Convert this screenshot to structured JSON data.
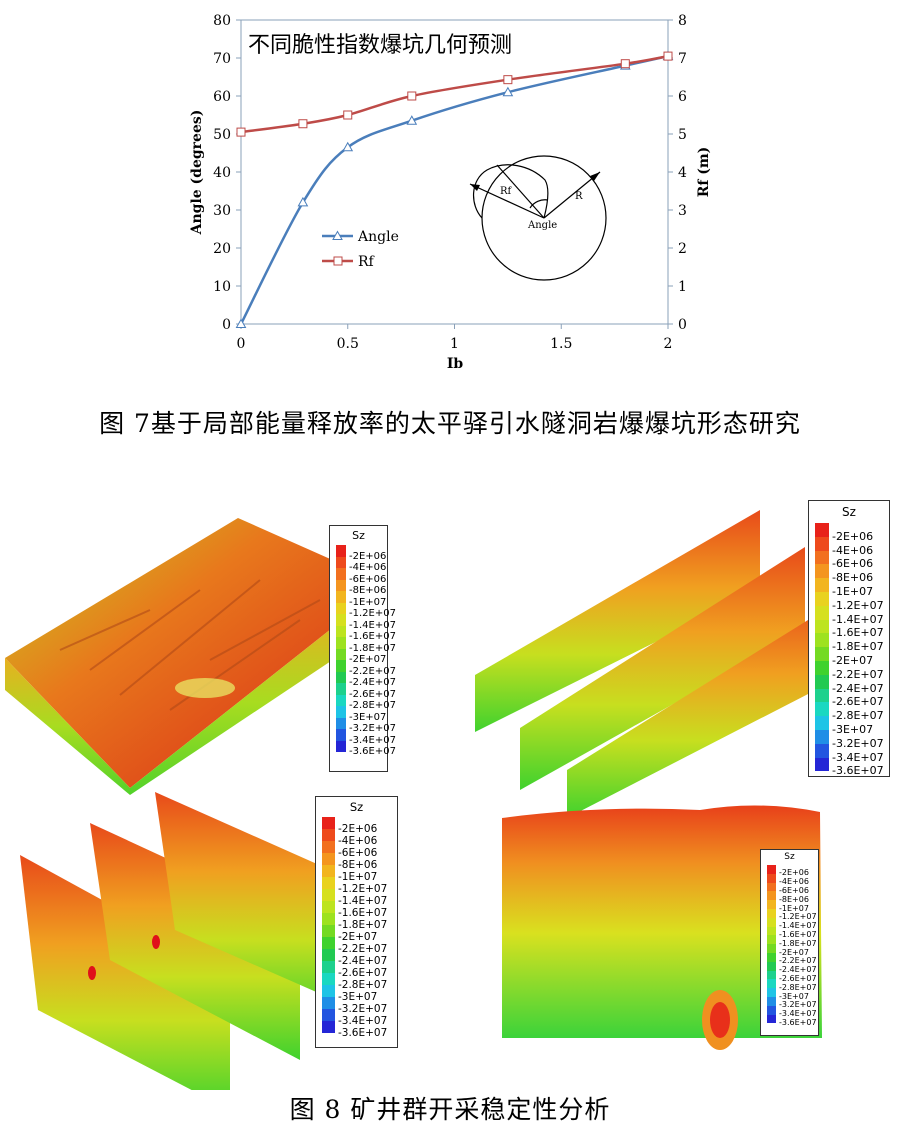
{
  "figure7": {
    "caption": "图 7基于局部能量释放率的太平驿引水隧洞岩爆爆坑形态研究",
    "chart_data": {
      "type": "line",
      "title": "不同脆性指数爆坑几何预测",
      "xlabel": "Ib",
      "ylabel_left": "Angle (degrees)",
      "ylabel_right": "Rf (m)",
      "xlim": [
        0,
        2
      ],
      "ylim_left": [
        0,
        80
      ],
      "ylim_right": [
        0,
        8
      ],
      "x_ticks": [
        "0",
        "0.5",
        "1",
        "1.5",
        "2"
      ],
      "y_left_ticks": [
        "0",
        "10",
        "20",
        "30",
        "40",
        "50",
        "60",
        "70",
        "80"
      ],
      "y_right_ticks": [
        "0",
        "1",
        "2",
        "3",
        "4",
        "5",
        "6",
        "7",
        "8"
      ],
      "legend_position": "center",
      "series": [
        {
          "name": "Angle",
          "axis": "left",
          "color": "#4a7ebb",
          "marker": "triangle",
          "x": [
            0,
            0.29,
            0.5,
            0.8,
            1.25,
            1.8,
            2.0
          ],
          "y": [
            0,
            32,
            46.5,
            53.5,
            61,
            68,
            70.5
          ]
        },
        {
          "name": "Rf",
          "axis": "right",
          "color": "#be4b48",
          "marker": "square",
          "x": [
            0,
            0.29,
            0.5,
            0.8,
            1.25,
            1.8,
            2.0
          ],
          "y": [
            5.05,
            5.27,
            5.5,
            6.0,
            6.43,
            6.85,
            7.05
          ]
        }
      ],
      "inset_labels": {
        "rf": "Rf",
        "r": "R",
        "angle": "Angle"
      }
    }
  },
  "figure8": {
    "caption": "图 8 矿井群开采稳定性分析",
    "legend_title": "Sz",
    "legend_labels": [
      "-2E+06",
      "-4E+06",
      "-6E+06",
      "-8E+06",
      "-1E+07",
      "-1.2E+07",
      "-1.4E+07",
      "-1.6E+07",
      "-1.8E+07",
      "-2E+07",
      "-2.2E+07",
      "-2.4E+07",
      "-2.6E+07",
      "-2.8E+07",
      "-3E+07",
      "-3.2E+07",
      "-3.4E+07",
      "-3.6E+07"
    ],
    "legend_colors": [
      "#e8221a",
      "#ee4a1c",
      "#f2701f",
      "#f4951f",
      "#f2b51f",
      "#e9d21f",
      "#d6e01f",
      "#bde41f",
      "#9ee21f",
      "#74da22",
      "#3fd22e",
      "#21ca52",
      "#1dd18d",
      "#1ad8c1",
      "#1ec4e6",
      "#1f8ee6",
      "#2255e0",
      "#2426d6"
    ]
  }
}
